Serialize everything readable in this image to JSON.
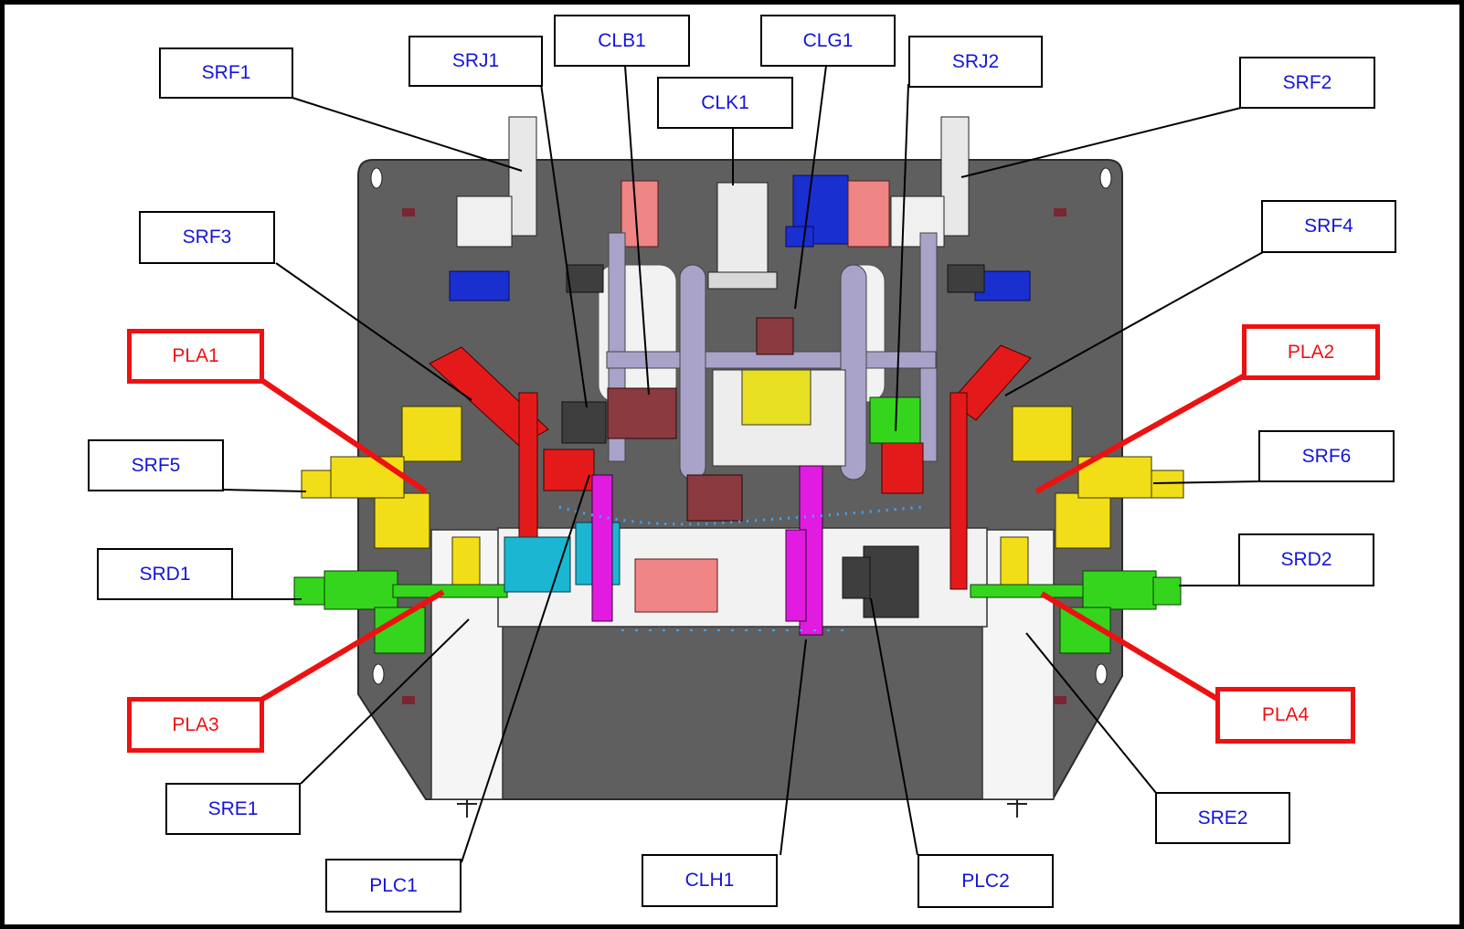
{
  "colors": {
    "label_blue": "#1414d8",
    "label_red": "#ee1111",
    "plate": "#5f5f5f",
    "frame": "#000000"
  },
  "labels": {
    "srf1": "SRF1",
    "srj1": "SRJ1",
    "clb1": "CLB1",
    "clg1": "CLG1",
    "srj2": "SRJ2",
    "clk1": "CLK1",
    "srf2": "SRF2",
    "srf3": "SRF3",
    "srf4": "SRF4",
    "pla1": "PLA1",
    "pla2": "PLA2",
    "srf5": "SRF5",
    "srf6": "SRF6",
    "srd1": "SRD1",
    "srd2": "SRD2",
    "pla3": "PLA3",
    "pla4": "PLA4",
    "sre1": "SRE1",
    "sre2": "SRE2",
    "plc1": "PLC1",
    "clh1": "CLH1",
    "plc2": "PLC2"
  }
}
